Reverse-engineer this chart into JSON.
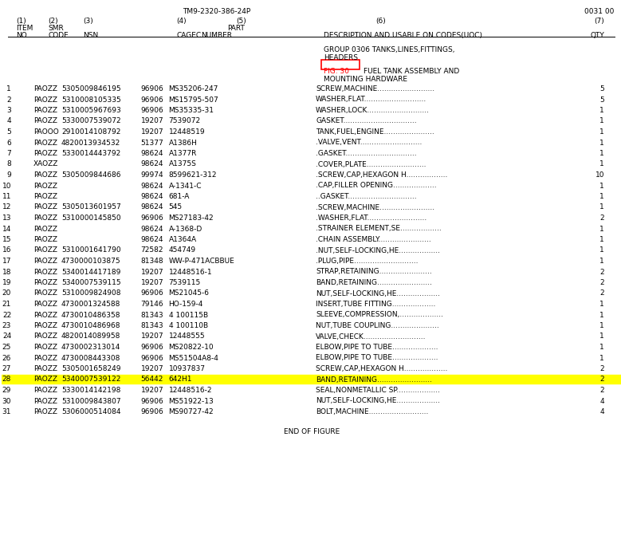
{
  "bg_color": "#ffffff",
  "font_family": "Courier New",
  "header_top": "TM9-2320-386-24P",
  "header_right": "0031 00",
  "col_headers_line1": [
    "(1)",
    "(2)",
    "(3)",
    "(4)",
    "(5)",
    "(6)",
    "(7)"
  ],
  "col_headers_line2": [
    "ITEM",
    "SMR",
    "",
    "",
    "PART",
    "",
    ""
  ],
  "col_headers_line3": [
    "NO",
    "CODE",
    "NSN",
    "CAGEC",
    "NUMBER",
    "DESCRIPTION AND USABLE ON CODES (UOC)",
    "QTY"
  ],
  "group_line1": "GROUP 0306 TANKS,LINES,FITTINGS,",
  "group_line2": "HEADERS",
  "fig_label": "FIG. 30",
  "fig_desc1": "FUEL TANK ASSEMBLY AND",
  "fig_desc2": "MOUNTING HARDWARE",
  "rows": [
    [
      "1",
      "PAOZZ",
      "5305009846195",
      "96906",
      "MS35206-247",
      "SCREW,MACHINE.........................",
      "5"
    ],
    [
      "2",
      "PAOZZ",
      "5310008105335",
      "96906",
      "MS15795-507",
      "WASHER,FLAT...........................",
      "5"
    ],
    [
      "3",
      "PAOZZ",
      "5310005967693",
      "96906",
      "MS35335-31",
      "WASHER,LOCK...........................",
      "1"
    ],
    [
      "4",
      "PAOZZ",
      "5330007539072",
      "19207",
      "7539072",
      "GASKET................................",
      "1"
    ],
    [
      "5",
      "PAOOO",
      "2910014108792",
      "19207",
      "12448519",
      "TANK,FUEL,ENGINE......................",
      "1"
    ],
    [
      "6",
      "PAOZZ",
      "4820013934532",
      "51377",
      "A1386H",
      ".VALVE,VENT...........................",
      "1"
    ],
    [
      "7",
      "PAOZZ",
      "5330014443792",
      "98624",
      "A1377R",
      ".GASKET...............................",
      "1"
    ],
    [
      "8",
      "XAOZZ",
      "",
      "98624",
      "A1375S",
      ".COVER,PLATE..........................",
      "1"
    ],
    [
      "9",
      "PAOZZ",
      "5305009844686",
      "99974",
      "8599621-312",
      ".SCREW,CAP,HEXAGON H..................",
      "10"
    ],
    [
      "10",
      "PAOZZ",
      "",
      "98624",
      "A-1341-C",
      ".CAP,FILLER OPENING...................",
      "1"
    ],
    [
      "11",
      "PAOZZ",
      "",
      "98624",
      "681-A",
      "..GASKET..............................",
      "1"
    ],
    [
      "12",
      "PAOZZ",
      "5305013601957",
      "98624",
      "545",
      ".SCREW,MACHINE........................",
      "1"
    ],
    [
      "13",
      "PAOZZ",
      "5310000145850",
      "96906",
      "MS27183-42",
      ".WASHER,FLAT..........................",
      "2"
    ],
    [
      "14",
      "PAOZZ",
      "",
      "98624",
      "A-1368-D",
      ".STRAINER ELEMENT,SE..................",
      "1"
    ],
    [
      "15",
      "PAOZZ",
      "",
      "98624",
      "A1364A",
      ".CHAIN ASSEMBLY.......................",
      "1"
    ],
    [
      "16",
      "PAOZZ",
      "5310001641790",
      "72582",
      "454749",
      ".NUT,SELF-LOCKING,HE..................",
      "1"
    ],
    [
      "17",
      "PAOZZ",
      "4730000103875",
      "81348",
      "WW-P-471ACBBUE",
      ".PLUG,PIPE............................",
      "1"
    ],
    [
      "18",
      "PAOZZ",
      "5340014417189",
      "19207",
      "12448516-1",
      "STRAP,RETAINING.......................",
      "2"
    ],
    [
      "19",
      "PAOZZ",
      "5340007539115",
      "19207",
      "7539115",
      "BAND,RETAINING........................",
      "2"
    ],
    [
      "20",
      "PAOZZ",
      "5310009824908",
      "96906",
      "MS21045-6",
      "NUT,SELF-LOCKING,HE...................",
      "2"
    ],
    [
      "21",
      "PAOZZ",
      "4730001324588",
      "79146",
      "HO-159-4",
      "INSERT,TUBE FITTING...................",
      "1"
    ],
    [
      "22",
      "PAOZZ",
      "4730010486358",
      "81343",
      "4 100115B",
      "SLEEVE,COMPRESSION,...................",
      "1"
    ],
    [
      "23",
      "PAOZZ",
      "4730010486968",
      "81343",
      "4 100110B",
      "NUT,TUBE COUPLING.....................",
      "1"
    ],
    [
      "24",
      "PAOZZ",
      "4820014089958",
      "19207",
      "12448555",
      "VALVE,CHECK...........................",
      "1"
    ],
    [
      "25",
      "PAOZZ",
      "4730002313014",
      "96906",
      "MS20822-10",
      "ELBOW,PIPE TO TUBE....................",
      "1"
    ],
    [
      "26",
      "PAOZZ",
      "4730008443308",
      "96906",
      "MS51504A8-4",
      "ELBOW,PIPE TO TUBE....................",
      "1"
    ],
    [
      "27",
      "PAOZZ",
      "5305001658249",
      "19207",
      "10937837",
      "SCREW,CAP,HEXAGON H...................",
      "2"
    ],
    [
      "28",
      "PAOZZ",
      "5340007539122",
      "56442",
      "642H1",
      "BAND,RETAINING........................",
      "2"
    ],
    [
      "29",
      "PAOZZ",
      "5330014142198",
      "19207",
      "12448516-2",
      "SEAL,NONMETALLIC SP...................",
      "2"
    ],
    [
      "30",
      "PAOZZ",
      "5310009843807",
      "96906",
      "MS51922-13",
      "NUT,SELF-LOCKING,HE...................",
      "4"
    ],
    [
      "31",
      "PAOZZ",
      "5306000514084",
      "96906",
      "MS90727-42",
      "BOLT,MACHINE..........................",
      "4"
    ]
  ],
  "highlighted_row": 27,
  "highlight_color": "#ffff00",
  "end_text": "END OF FIGURE",
  "fig_label_box_color": "#ff0000",
  "text_color": "#000000"
}
